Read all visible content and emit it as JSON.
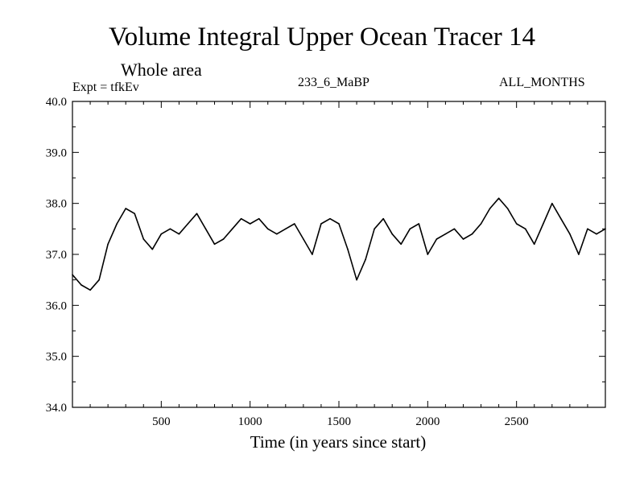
{
  "chart_data": {
    "type": "line",
    "title": "Volume Integral Upper Ocean Tracer 14",
    "subtitle": "Whole area",
    "annotations": [
      "Expt = tfkEv",
      "233_6_MaBP",
      "ALL_MONTHS"
    ],
    "xlabel": "Time (in years since start)",
    "ylabel": "",
    "xlim": [
      0,
      3000
    ],
    "ylim": [
      34.0,
      40.0
    ],
    "xticks": [
      500,
      1000,
      1500,
      2000,
      2500
    ],
    "yticks": [
      "34.0",
      "35.0",
      "36.0",
      "37.0",
      "38.0",
      "39.0",
      "40.0"
    ],
    "grid": false,
    "series": [
      {
        "color": "#000000",
        "x": [
          0,
          50,
          100,
          150,
          200,
          250,
          300,
          350,
          400,
          450,
          500,
          550,
          600,
          650,
          700,
          750,
          800,
          850,
          900,
          950,
          1000,
          1050,
          1100,
          1150,
          1200,
          1250,
          1300,
          1350,
          1400,
          1450,
          1500,
          1550,
          1600,
          1650,
          1700,
          1750,
          1800,
          1850,
          1900,
          1950,
          2000,
          2050,
          2100,
          2150,
          2200,
          2250,
          2300,
          2350,
          2400,
          2450,
          2500,
          2550,
          2600,
          2650,
          2700,
          2750,
          2800,
          2850,
          2900,
          2950,
          3000
        ],
        "y": [
          36.6,
          36.4,
          36.3,
          36.5,
          37.2,
          37.6,
          37.9,
          37.8,
          37.3,
          37.1,
          37.4,
          37.5,
          37.4,
          37.6,
          37.8,
          37.5,
          37.2,
          37.3,
          37.5,
          37.7,
          37.6,
          37.7,
          37.5,
          37.4,
          37.5,
          37.6,
          37.3,
          37.0,
          37.6,
          37.7,
          37.6,
          37.1,
          36.5,
          36.9,
          37.5,
          37.7,
          37.4,
          37.2,
          37.5,
          37.6,
          37.0,
          37.3,
          37.4,
          37.5,
          37.3,
          37.4,
          37.6,
          37.9,
          38.1,
          37.9,
          37.6,
          37.5,
          37.2,
          37.6,
          38.0,
          37.7,
          37.4,
          37.0,
          37.5,
          37.4,
          37.5
        ]
      }
    ]
  }
}
